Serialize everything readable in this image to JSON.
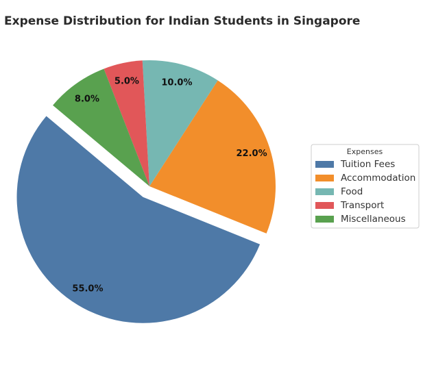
{
  "chart_data": {
    "type": "pie",
    "title": "Expense Distribution for Indian Students in Singapore",
    "categories": [
      "Tuition Fees",
      "Accommodation",
      "Food",
      "Transport",
      "Miscellaneous"
    ],
    "values": [
      55,
      22,
      10,
      5,
      8
    ],
    "value_labels": [
      "55.0%",
      "22.0%",
      "10.0%",
      "5.0%",
      "8.0%"
    ],
    "colors": [
      "#4e79a7",
      "#f28e2b",
      "#76b7b2",
      "#e15759",
      "#59a14f"
    ],
    "legend_title": "Expenses",
    "legend": "right"
  }
}
